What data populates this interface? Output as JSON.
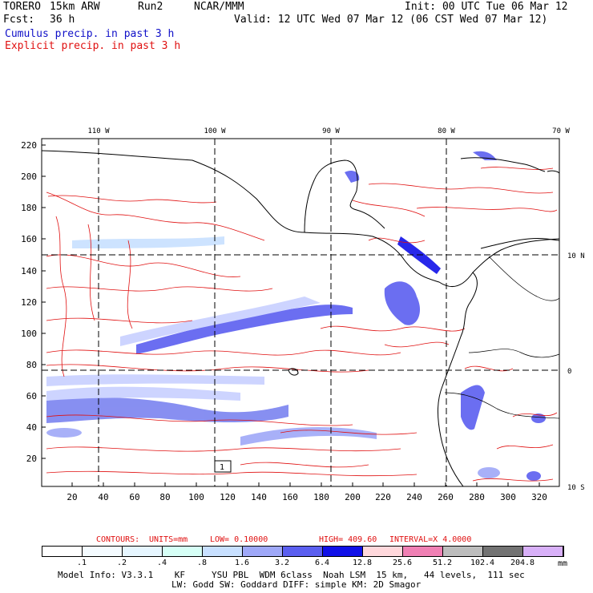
{
  "header": {
    "model": "TORERO",
    "resolution": "15km ARW",
    "run": "Run2",
    "org": "NCAR/MMM",
    "init": "Init: 00 UTC Tue 06 Mar 12",
    "fcst_label": "Fcst:",
    "fcst_value": "36 h",
    "valid": "Valid: 12 UTC Wed 07 Mar 12 (06 CST Wed 07 Mar 12)",
    "legend_cumulus": "Cumulus precip. in past 3 h",
    "legend_explicit": "Explicit precip. in past 3 h"
  },
  "map": {
    "lon_labels": [
      "110 W",
      "100 W",
      "90 W",
      "80 W",
      "70 W"
    ],
    "lat_labels": [
      "10 N",
      "0",
      "10 S"
    ],
    "y_ticks": [
      "220",
      "200",
      "180",
      "160",
      "140",
      "120",
      "100",
      "80",
      "60",
      "40",
      "20"
    ],
    "x_ticks": [
      "20",
      "40",
      "60",
      "80",
      "100",
      "120",
      "140",
      "160",
      "180",
      "200",
      "220",
      "240",
      "260",
      "280",
      "300",
      "320"
    ],
    "box_label": "1",
    "colors": {
      "explicit_contour": "#e01010",
      "coast": "#000000",
      "grid": "#000000"
    }
  },
  "contours_line": {
    "contours": "CONTOURS:",
    "units": "UNITS=mm",
    "low": "LOW= 0.10000",
    "high": "HIGH= 409.60",
    "interval": "INTERVAL=X 4.0000"
  },
  "colorbar": {
    "colors": [
      "#ffffff",
      "#f4fbff",
      "#e6f6ff",
      "#d6fff6",
      "#c8e0ff",
      "#9fa8f8",
      "#5b5ff0",
      "#1010e8",
      "#ffd8dc",
      "#f080b4",
      "#bdbdbd",
      "#737373",
      "#d8b0f8"
    ],
    "labels": [
      ".1",
      ".2",
      ".4",
      ".8",
      "1.6",
      "3.2",
      "6.4",
      "12.8",
      "25.6",
      "51.2",
      "102.4",
      "204.8"
    ],
    "unit": "mm"
  },
  "footer": {
    "line1": "Model Info: V3.3.1    KF     YSU PBL  WDM 6class  Noah LSM  15 km,   44 levels,  111 sec",
    "line2": "LW: Godd SW: Goddard DIFF: simple KM: 2D Smagor"
  }
}
